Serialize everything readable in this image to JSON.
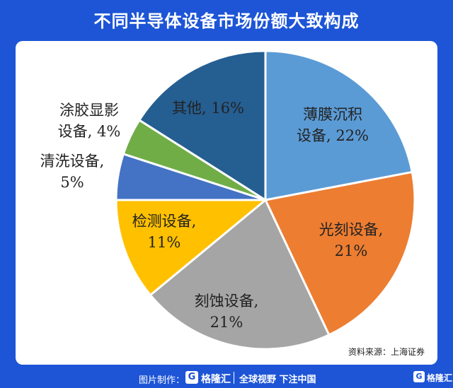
{
  "title": "不同半导体设备市场份额大致构成",
  "source": "资料来源：上海证券",
  "footer": {
    "credit": "图片制作：",
    "logo_glyph": "G",
    "brand": "格隆汇",
    "slogan": "全球视野 下注中国",
    "brand2": "格隆汇"
  },
  "colors": {
    "background": "#1d55d6",
    "card": "#ffffff"
  },
  "chart_data": {
    "type": "pie",
    "start": "12 o'clock, clockwise",
    "slices": [
      {
        "label": "薄膜沉积\n设备, 22%",
        "value": 22,
        "color": "#5b9bd5"
      },
      {
        "label": "光刻设备,\n21%",
        "value": 21,
        "color": "#ed7d31"
      },
      {
        "label": "刻蚀设备,\n21%",
        "value": 21,
        "color": "#a5a5a5"
      },
      {
        "label": "检测设备,\n11%",
        "value": 11,
        "color": "#ffc000"
      },
      {
        "label": "清洗设备,\n5%",
        "value": 5,
        "color": "#4472c4"
      },
      {
        "label": "涂胶显影\n设备, 4%",
        "value": 4,
        "color": "#70ad47"
      },
      {
        "label": "其他, 16%",
        "value": 16,
        "color": "#255e91"
      }
    ]
  }
}
